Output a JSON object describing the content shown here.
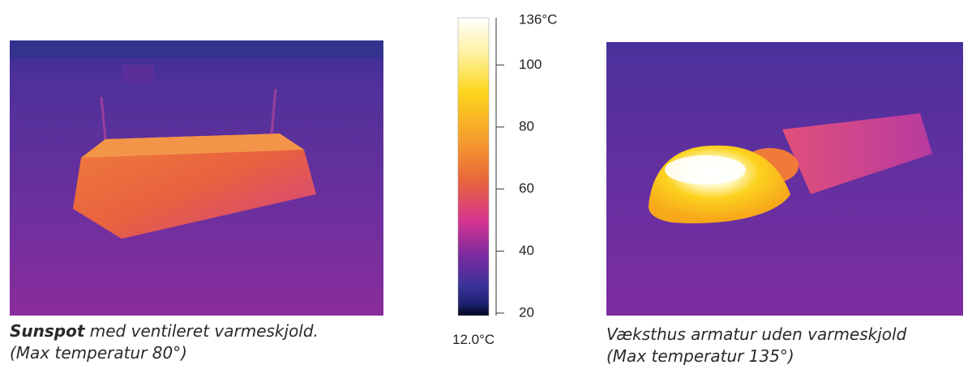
{
  "left_image": {
    "caption_bold": "Sunspot",
    "caption_rest": "med ventileret varmeskjold.",
    "caption_line2": "(Max temperatur 80°)"
  },
  "right_image": {
    "caption_line1": "Væksthus armatur uden varmeskjold",
    "caption_line2": "(Max temperatur 135°)"
  },
  "scale": {
    "max_label": "136°C",
    "min_label": "12.0°C",
    "ylim": [
      19.2,
      115.2
    ],
    "ticks": [
      20,
      40,
      60,
      80,
      100
    ]
  }
}
